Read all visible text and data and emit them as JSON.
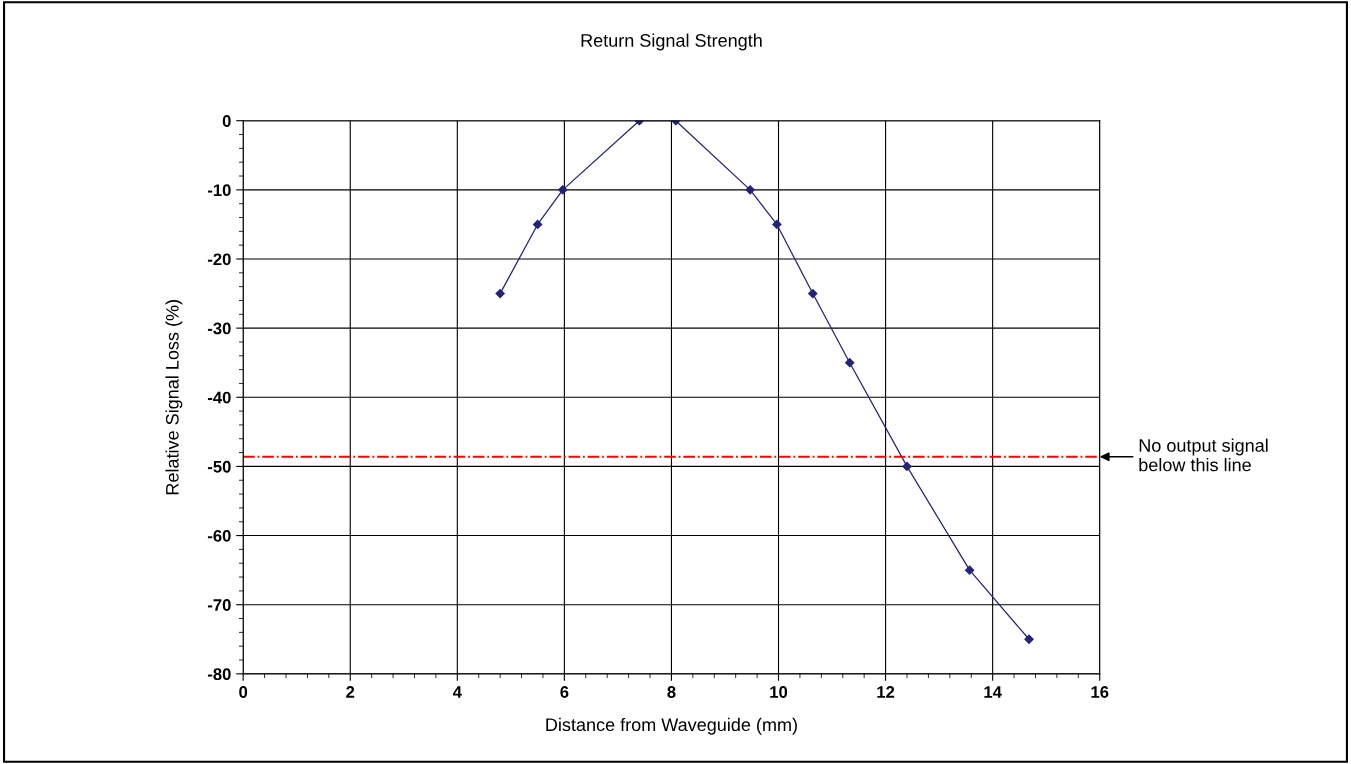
{
  "chart_data": {
    "type": "line",
    "title": "Return Signal Strength",
    "xlabel": "Distance from Waveguide (mm)",
    "ylabel": "Relative Signal Loss (%)",
    "x": [
      4.8,
      5.5,
      5.97,
      7.4,
      8.08,
      9.47,
      9.97,
      10.64,
      11.33,
      12.4,
      13.57,
      14.68
    ],
    "series": [
      {
        "color": "#23237a",
        "values": [
          -25,
          -15,
          -10,
          0,
          0,
          -10,
          -15,
          -25,
          -35,
          -50,
          -65,
          -75
        ]
      }
    ],
    "xlim": [
      0,
      16
    ],
    "xticks": [
      0,
      2,
      4,
      6,
      8,
      10,
      12,
      14,
      16
    ],
    "ylim": [
      -80,
      0
    ],
    "yticks": [
      -80,
      -70,
      -60,
      -50,
      -40,
      -30,
      -20,
      -10,
      0
    ],
    "grid": true,
    "marker": "diamond",
    "line_style": "solid",
    "legend": false,
    "ref_lines": [
      {
        "axis": "y",
        "value": -48.6,
        "label": "No output signal\nbelow this line",
        "color": "#ff0000",
        "line_style": "dashdot"
      }
    ]
  }
}
